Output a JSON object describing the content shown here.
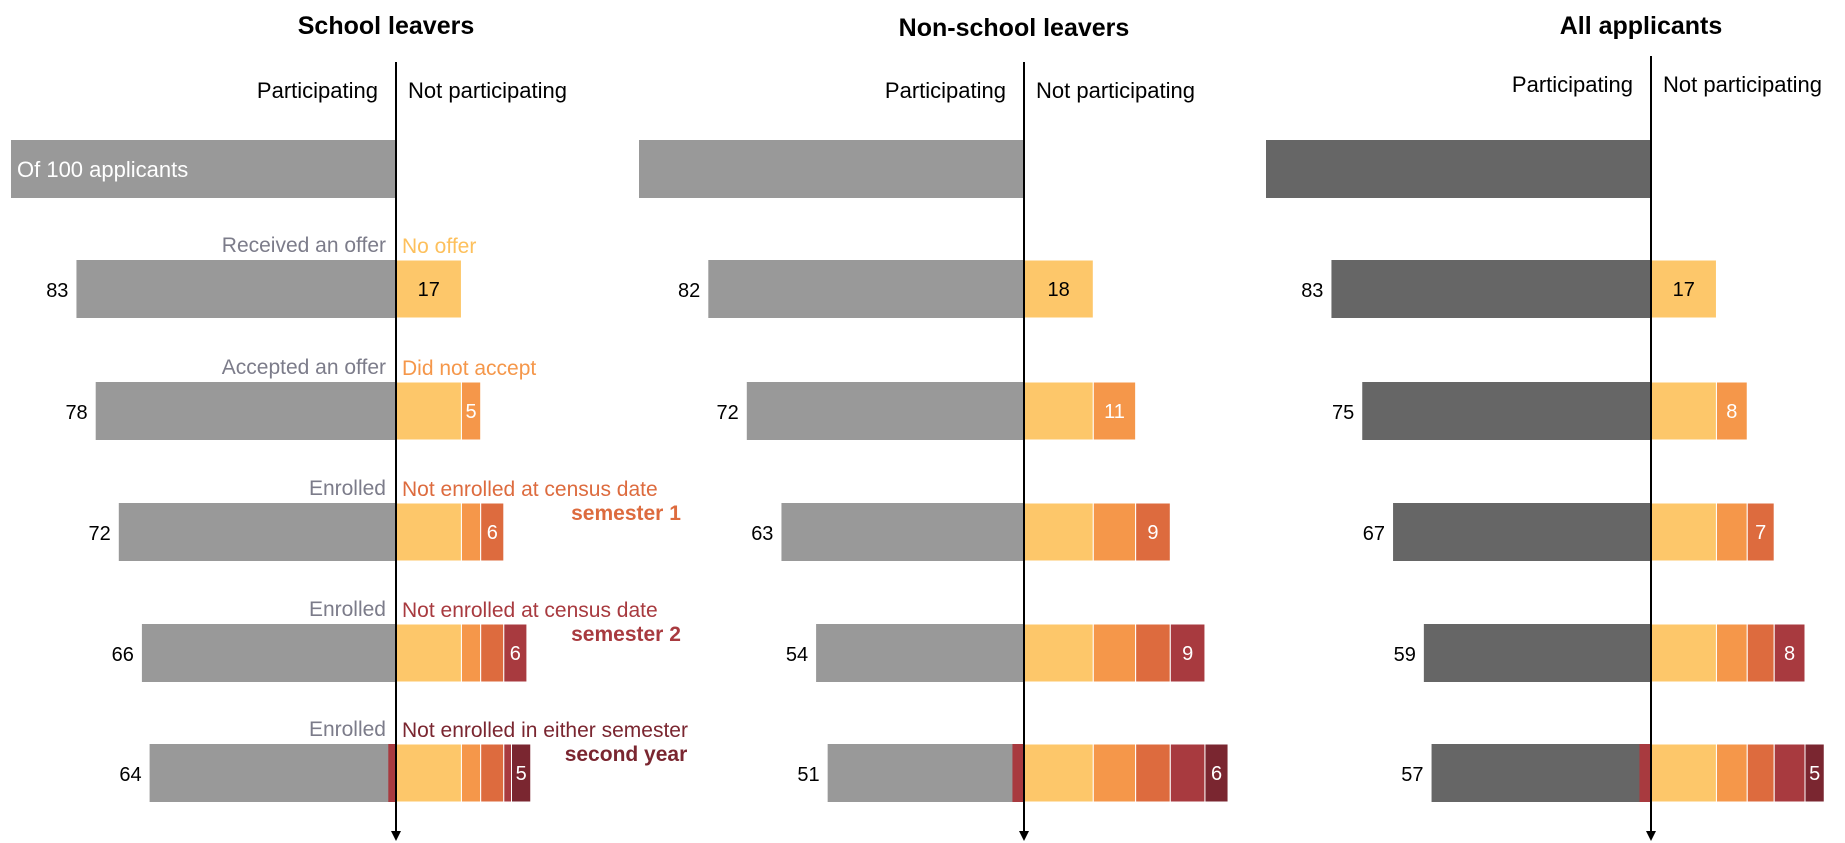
{
  "chart_data": {
    "type": "bar",
    "subtype": "diverging-stacked-bar",
    "colors": {
      "participating_light": "#999999",
      "participating_dark": "#666666",
      "segments": [
        "#fdc76a",
        "#f5974a",
        "#dd6b3e",
        "#a83a3f",
        "#7a2630"
      ],
      "label_offer": "#fdc05c",
      "label_accept": "#f5974a",
      "label_sem1": "#dd6b3e",
      "label_sem2": "#a83a3f",
      "label_year2": "#7a2630",
      "axis": "#000000"
    },
    "side_labels": {
      "left": "Participating",
      "right": "Not participating"
    },
    "base_label": "Of 100 applicants",
    "stages": [
      {
        "left": "",
        "right": "",
        "right_bold": ""
      },
      {
        "left": "Received an offer",
        "right": "No offer",
        "right_bold": ""
      },
      {
        "left": "Accepted an offer",
        "right": "Did not accept",
        "right_bold": ""
      },
      {
        "left": "Enrolled",
        "right": "Not enrolled at census date",
        "right_bold": "semester 1"
      },
      {
        "left": "Enrolled",
        "right": "Not enrolled at census date",
        "right_bold": "semester 2"
      },
      {
        "left": "Enrolled",
        "right": "Not enrolled in either semester",
        "right_bold": "second year"
      }
    ],
    "panels": [
      {
        "title": "School leavers",
        "color": "participating_light",
        "participating": [
          100,
          83,
          78,
          72,
          66,
          64
        ],
        "returning": [
          0,
          0,
          0,
          0,
          0,
          2
        ],
        "segments": [
          [],
          [
            17
          ],
          [
            17,
            5
          ],
          [
            17,
            5,
            6
          ],
          [
            17,
            5,
            6,
            6
          ],
          [
            17,
            5,
            6,
            2,
            5
          ]
        ]
      },
      {
        "title": "Non-school leavers",
        "color": "participating_light",
        "participating": [
          100,
          82,
          72,
          63,
          54,
          51
        ],
        "returning": [
          0,
          0,
          0,
          0,
          0,
          3
        ],
        "segments": [
          [],
          [
            18
          ],
          [
            18,
            11
          ],
          [
            18,
            11,
            9
          ],
          [
            18,
            11,
            9,
            9
          ],
          [
            18,
            11,
            9,
            9,
            6
          ]
        ]
      },
      {
        "title": "All applicants",
        "color": "participating_dark",
        "participating": [
          100,
          83,
          75,
          67,
          59,
          57
        ],
        "returning": [
          0,
          0,
          0,
          0,
          0,
          3
        ],
        "segments": [
          [],
          [
            17
          ],
          [
            17,
            8
          ],
          [
            17,
            8,
            7
          ],
          [
            17,
            8,
            7,
            8
          ],
          [
            17,
            8,
            7,
            8,
            5
          ]
        ]
      }
    ]
  }
}
